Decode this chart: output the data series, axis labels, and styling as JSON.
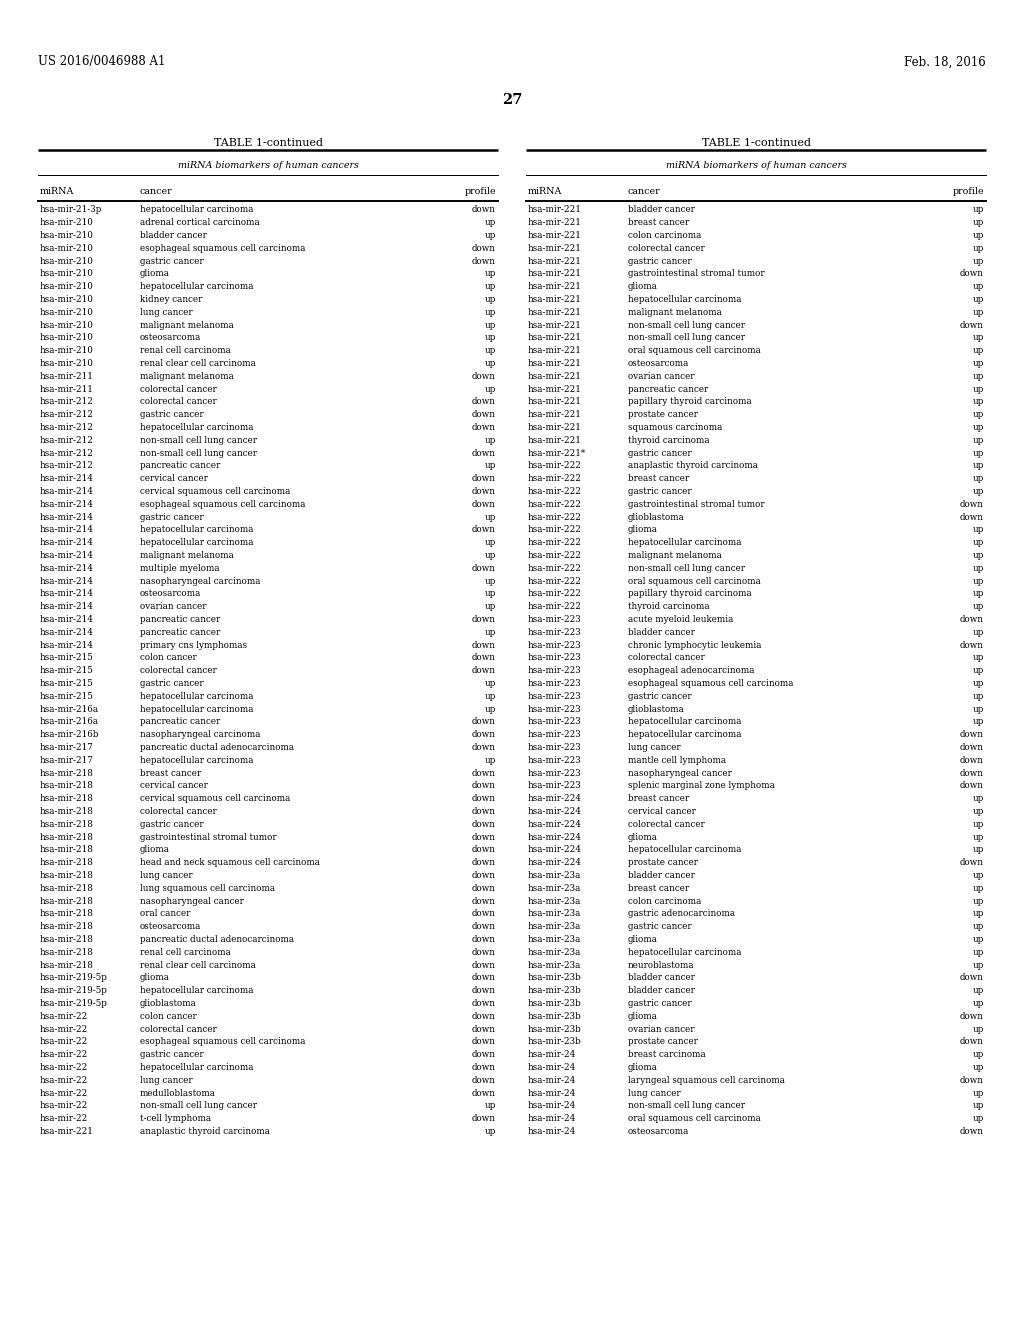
{
  "patent_left": "US 2016/0046988 A1",
  "patent_right": "Feb. 18, 2016",
  "page_number": "27",
  "table_title": "TABLE 1-continued",
  "col_header_span": "miRNA biomarkers of human cancers",
  "col_headers": [
    "miRNA",
    "cancer",
    "profile"
  ],
  "left_data": [
    [
      "hsa-mir-21-3p",
      "hepatocellular carcinoma",
      "down"
    ],
    [
      "hsa-mir-210",
      "adrenal cortical carcinoma",
      "up"
    ],
    [
      "hsa-mir-210",
      "bladder cancer",
      "up"
    ],
    [
      "hsa-mir-210",
      "esophageal squamous cell carcinoma",
      "down"
    ],
    [
      "hsa-mir-210",
      "gastric cancer",
      "down"
    ],
    [
      "hsa-mir-210",
      "glioma",
      "up"
    ],
    [
      "hsa-mir-210",
      "hepatocellular carcinoma",
      "up"
    ],
    [
      "hsa-mir-210",
      "kidney cancer",
      "up"
    ],
    [
      "hsa-mir-210",
      "lung cancer",
      "up"
    ],
    [
      "hsa-mir-210",
      "malignant melanoma",
      "up"
    ],
    [
      "hsa-mir-210",
      "osteosarcoma",
      "up"
    ],
    [
      "hsa-mir-210",
      "renal cell carcinoma",
      "up"
    ],
    [
      "hsa-mir-210",
      "renal clear cell carcinoma",
      "up"
    ],
    [
      "hsa-mir-211",
      "malignant melanoma",
      "down"
    ],
    [
      "hsa-mir-211",
      "colorectal cancer",
      "up"
    ],
    [
      "hsa-mir-212",
      "colorectal cancer",
      "down"
    ],
    [
      "hsa-mir-212",
      "gastric cancer",
      "down"
    ],
    [
      "hsa-mir-212",
      "hepatocellular carcinoma",
      "down"
    ],
    [
      "hsa-mir-212",
      "non-small cell lung cancer",
      "up"
    ],
    [
      "hsa-mir-212",
      "non-small cell lung cancer",
      "down"
    ],
    [
      "hsa-mir-212",
      "pancreatic cancer",
      "up"
    ],
    [
      "hsa-mir-214",
      "cervical cancer",
      "down"
    ],
    [
      "hsa-mir-214",
      "cervical squamous cell carcinoma",
      "down"
    ],
    [
      "hsa-mir-214",
      "esophageal squamous cell carcinoma",
      "down"
    ],
    [
      "hsa-mir-214",
      "gastric cancer",
      "up"
    ],
    [
      "hsa-mir-214",
      "hepatocellular carcinoma",
      "down"
    ],
    [
      "hsa-mir-214",
      "hepatocellular carcinoma",
      "up"
    ],
    [
      "hsa-mir-214",
      "malignant melanoma",
      "up"
    ],
    [
      "hsa-mir-214",
      "multiple myeloma",
      "down"
    ],
    [
      "hsa-mir-214",
      "nasopharyngeal carcinoma",
      "up"
    ],
    [
      "hsa-mir-214",
      "osteosarcoma",
      "up"
    ],
    [
      "hsa-mir-214",
      "ovarian cancer",
      "up"
    ],
    [
      "hsa-mir-214",
      "pancreatic cancer",
      "down"
    ],
    [
      "hsa-mir-214",
      "pancreatic cancer",
      "up"
    ],
    [
      "hsa-mir-214",
      "primary cns lymphomas",
      "down"
    ],
    [
      "hsa-mir-215",
      "colon cancer",
      "down"
    ],
    [
      "hsa-mir-215",
      "colorectal cancer",
      "down"
    ],
    [
      "hsa-mir-215",
      "gastric cancer",
      "up"
    ],
    [
      "hsa-mir-215",
      "hepatocellular carcinoma",
      "up"
    ],
    [
      "hsa-mir-216a",
      "hepatocellular carcinoma",
      "up"
    ],
    [
      "hsa-mir-216a",
      "pancreatic cancer",
      "down"
    ],
    [
      "hsa-mir-216b",
      "nasopharyngeal carcinoma",
      "down"
    ],
    [
      "hsa-mir-217",
      "pancreatic ductal adenocarcinoma",
      "down"
    ],
    [
      "hsa-mir-217",
      "hepatocellular carcinoma",
      "up"
    ],
    [
      "hsa-mir-218",
      "breast cancer",
      "down"
    ],
    [
      "hsa-mir-218",
      "cervical cancer",
      "down"
    ],
    [
      "hsa-mir-218",
      "cervical squamous cell carcinoma",
      "down"
    ],
    [
      "hsa-mir-218",
      "colorectal cancer",
      "down"
    ],
    [
      "hsa-mir-218",
      "gastric cancer",
      "down"
    ],
    [
      "hsa-mir-218",
      "gastrointestinal stromal tumor",
      "down"
    ],
    [
      "hsa-mir-218",
      "glioma",
      "down"
    ],
    [
      "hsa-mir-218",
      "head and neck squamous cell carcinoma",
      "down"
    ],
    [
      "hsa-mir-218",
      "lung cancer",
      "down"
    ],
    [
      "hsa-mir-218",
      "lung squamous cell carcinoma",
      "down"
    ],
    [
      "hsa-mir-218",
      "nasopharyngeal cancer",
      "down"
    ],
    [
      "hsa-mir-218",
      "oral cancer",
      "down"
    ],
    [
      "hsa-mir-218",
      "osteosarcoma",
      "down"
    ],
    [
      "hsa-mir-218",
      "pancreatic ductal adenocarcinoma",
      "down"
    ],
    [
      "hsa-mir-218",
      "renal cell carcinoma",
      "down"
    ],
    [
      "hsa-mir-218",
      "renal clear cell carcinoma",
      "down"
    ],
    [
      "hsa-mir-219-5p",
      "glioma",
      "down"
    ],
    [
      "hsa-mir-219-5p",
      "hepatocellular carcinoma",
      "down"
    ],
    [
      "hsa-mir-219-5p",
      "glioblastoma",
      "down"
    ],
    [
      "hsa-mir-22",
      "colon cancer",
      "down"
    ],
    [
      "hsa-mir-22",
      "colorectal cancer",
      "down"
    ],
    [
      "hsa-mir-22",
      "esophageal squamous cell carcinoma",
      "down"
    ],
    [
      "hsa-mir-22",
      "gastric cancer",
      "down"
    ],
    [
      "hsa-mir-22",
      "hepatocellular carcinoma",
      "down"
    ],
    [
      "hsa-mir-22",
      "lung cancer",
      "down"
    ],
    [
      "hsa-mir-22",
      "medulloblastoma",
      "down"
    ],
    [
      "hsa-mir-22",
      "non-small cell lung cancer",
      "up"
    ],
    [
      "hsa-mir-22",
      "t-cell lymphoma",
      "down"
    ],
    [
      "hsa-mir-221",
      "anaplastic thyroid carcinoma",
      "up"
    ]
  ],
  "right_data": [
    [
      "hsa-mir-221",
      "bladder cancer",
      "up"
    ],
    [
      "hsa-mir-221",
      "breast cancer",
      "up"
    ],
    [
      "hsa-mir-221",
      "colon carcinoma",
      "up"
    ],
    [
      "hsa-mir-221",
      "colorectal cancer",
      "up"
    ],
    [
      "hsa-mir-221",
      "gastric cancer",
      "up"
    ],
    [
      "hsa-mir-221",
      "gastrointestinal stromal tumor",
      "down"
    ],
    [
      "hsa-mir-221",
      "glioma",
      "up"
    ],
    [
      "hsa-mir-221",
      "hepatocellular carcinoma",
      "up"
    ],
    [
      "hsa-mir-221",
      "malignant melanoma",
      "up"
    ],
    [
      "hsa-mir-221",
      "non-small cell lung cancer",
      "down"
    ],
    [
      "hsa-mir-221",
      "non-small cell lung cancer",
      "up"
    ],
    [
      "hsa-mir-221",
      "oral squamous cell carcinoma",
      "up"
    ],
    [
      "hsa-mir-221",
      "osteosarcoma",
      "up"
    ],
    [
      "hsa-mir-221",
      "ovarian cancer",
      "up"
    ],
    [
      "hsa-mir-221",
      "pancreatic cancer",
      "up"
    ],
    [
      "hsa-mir-221",
      "papillary thyroid carcinoma",
      "up"
    ],
    [
      "hsa-mir-221",
      "prostate cancer",
      "up"
    ],
    [
      "hsa-mir-221",
      "squamous carcinoma",
      "up"
    ],
    [
      "hsa-mir-221",
      "thyroid carcinoma",
      "up"
    ],
    [
      "hsa-mir-221*",
      "gastric cancer",
      "up"
    ],
    [
      "hsa-mir-222",
      "anaplastic thyroid carcinoma",
      "up"
    ],
    [
      "hsa-mir-222",
      "breast cancer",
      "up"
    ],
    [
      "hsa-mir-222",
      "gastric cancer",
      "up"
    ],
    [
      "hsa-mir-222",
      "gastrointestinal stromal tumor",
      "down"
    ],
    [
      "hsa-mir-222",
      "glioblastoma",
      "down"
    ],
    [
      "hsa-mir-222",
      "glioma",
      "up"
    ],
    [
      "hsa-mir-222",
      "hepatocellular carcinoma",
      "up"
    ],
    [
      "hsa-mir-222",
      "malignant melanoma",
      "up"
    ],
    [
      "hsa-mir-222",
      "non-small cell lung cancer",
      "up"
    ],
    [
      "hsa-mir-222",
      "oral squamous cell carcinoma",
      "up"
    ],
    [
      "hsa-mir-222",
      "papillary thyroid carcinoma",
      "up"
    ],
    [
      "hsa-mir-222",
      "thyroid carcinoma",
      "up"
    ],
    [
      "hsa-mir-223",
      "acute myeloid leukemia",
      "down"
    ],
    [
      "hsa-mir-223",
      "bladder cancer",
      "up"
    ],
    [
      "hsa-mir-223",
      "chronic lymphocytic leukemia",
      "down"
    ],
    [
      "hsa-mir-223",
      "colorectal cancer",
      "up"
    ],
    [
      "hsa-mir-223",
      "esophageal adenocarcinoma",
      "up"
    ],
    [
      "hsa-mir-223",
      "esophageal squamous cell carcinoma",
      "up"
    ],
    [
      "hsa-mir-223",
      "gastric cancer",
      "up"
    ],
    [
      "hsa-mir-223",
      "glioblastoma",
      "up"
    ],
    [
      "hsa-mir-223",
      "hepatocellular carcinoma",
      "up"
    ],
    [
      "hsa-mir-223",
      "hepatocellular carcinoma",
      "down"
    ],
    [
      "hsa-mir-223",
      "lung cancer",
      "down"
    ],
    [
      "hsa-mir-223",
      "mantle cell lymphoma",
      "down"
    ],
    [
      "hsa-mir-223",
      "nasopharyngeal cancer",
      "down"
    ],
    [
      "hsa-mir-223",
      "splenic marginal zone lymphoma",
      "down"
    ],
    [
      "hsa-mir-224",
      "breast cancer",
      "up"
    ],
    [
      "hsa-mir-224",
      "cervical cancer",
      "up"
    ],
    [
      "hsa-mir-224",
      "colorectal cancer",
      "up"
    ],
    [
      "hsa-mir-224",
      "glioma",
      "up"
    ],
    [
      "hsa-mir-224",
      "hepatocellular carcinoma",
      "up"
    ],
    [
      "hsa-mir-224",
      "prostate cancer",
      "down"
    ],
    [
      "hsa-mir-23a",
      "bladder cancer",
      "up"
    ],
    [
      "hsa-mir-23a",
      "breast cancer",
      "up"
    ],
    [
      "hsa-mir-23a",
      "colon carcinoma",
      "up"
    ],
    [
      "hsa-mir-23a",
      "gastric adenocarcinoma",
      "up"
    ],
    [
      "hsa-mir-23a",
      "gastric cancer",
      "up"
    ],
    [
      "hsa-mir-23a",
      "glioma",
      "up"
    ],
    [
      "hsa-mir-23a",
      "hepatocellular carcinoma",
      "up"
    ],
    [
      "hsa-mir-23a",
      "neuroblastoma",
      "up"
    ],
    [
      "hsa-mir-23b",
      "bladder cancer",
      "down"
    ],
    [
      "hsa-mir-23b",
      "bladder cancer",
      "up"
    ],
    [
      "hsa-mir-23b",
      "gastric cancer",
      "up"
    ],
    [
      "hsa-mir-23b",
      "glioma",
      "down"
    ],
    [
      "hsa-mir-23b",
      "ovarian cancer",
      "up"
    ],
    [
      "hsa-mir-23b",
      "prostate cancer",
      "down"
    ],
    [
      "hsa-mir-24",
      "breast carcinoma",
      "up"
    ],
    [
      "hsa-mir-24",
      "glioma",
      "up"
    ],
    [
      "hsa-mir-24",
      "laryngeal squamous cell carcinoma",
      "down"
    ],
    [
      "hsa-mir-24",
      "lung cancer",
      "up"
    ],
    [
      "hsa-mir-24",
      "non-small cell lung cancer",
      "up"
    ],
    [
      "hsa-mir-24",
      "oral squamous cell carcinoma",
      "up"
    ],
    [
      "hsa-mir-24",
      "osteosarcoma",
      "down"
    ]
  ],
  "bg_color": "#ffffff",
  "text_color": "#000000",
  "patent_fontsize": 8.5,
  "page_fontsize": 10.5,
  "table_title_fontsize": 8.0,
  "span_header_fontsize": 6.8,
  "col_header_fontsize": 6.8,
  "data_fontsize": 6.3,
  "fig_width": 10.24,
  "fig_height": 13.2,
  "dpi": 100
}
